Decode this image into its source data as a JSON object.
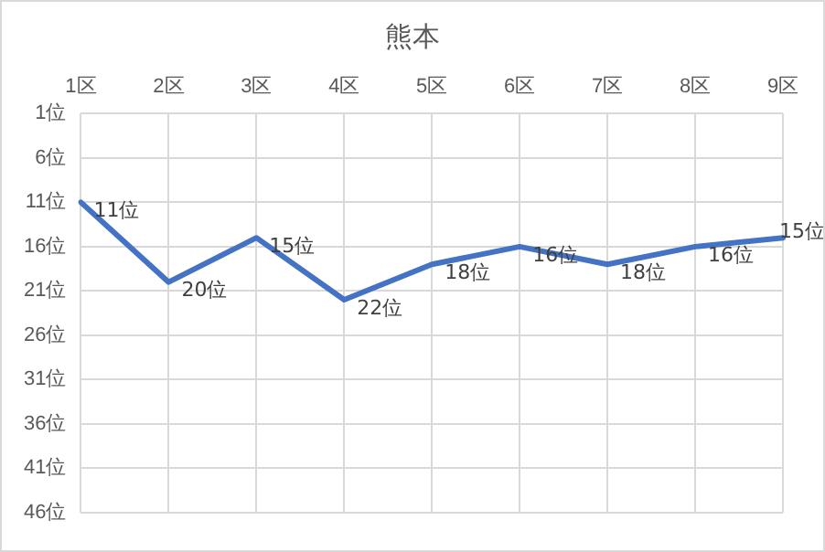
{
  "chart_data": {
    "type": "line",
    "title": "熊本",
    "categories": [
      "1区",
      "2区",
      "3区",
      "4区",
      "5区",
      "6区",
      "7区",
      "8区",
      "9区"
    ],
    "series": [
      {
        "color": "#4472c4",
        "values": [
          11,
          20,
          15,
          22,
          18,
          16,
          18,
          16,
          15
        ],
        "value_labels": [
          "11位",
          "20位",
          "15位",
          "22位",
          "18位",
          "16位",
          "18位",
          "16位",
          "15位"
        ]
      }
    ],
    "ylim": [
      46,
      1
    ],
    "yticks": [
      {
        "value": 1,
        "label": "1位"
      },
      {
        "value": 6,
        "label": "6位"
      },
      {
        "value": 11,
        "label": "11位"
      },
      {
        "value": 16,
        "label": "16位"
      },
      {
        "value": 21,
        "label": "21位"
      },
      {
        "value": 26,
        "label": "26位"
      },
      {
        "value": 31,
        "label": "31位"
      },
      {
        "value": 36,
        "label": "36位"
      },
      {
        "value": 41,
        "label": "41位"
      },
      {
        "value": 46,
        "label": "46位"
      }
    ],
    "grid": true,
    "legend": false,
    "marker": "none",
    "line_style": "solid"
  }
}
